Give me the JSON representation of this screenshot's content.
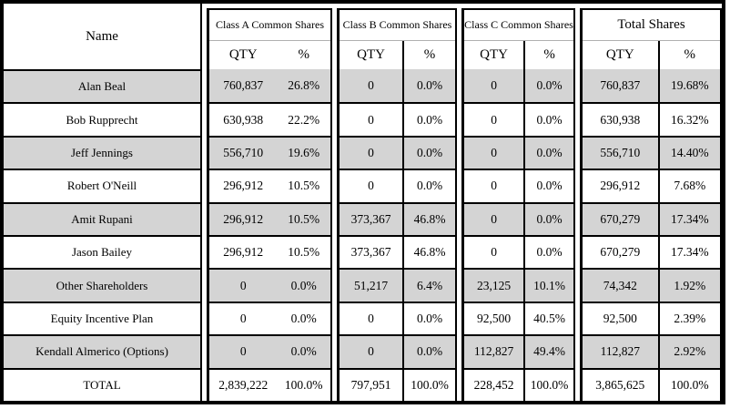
{
  "table": {
    "name_header": "Name",
    "groups": [
      {
        "id": "a",
        "title": "Class A Common Shares",
        "qty_label": "QTY",
        "pct_label": "%"
      },
      {
        "id": "b",
        "title": "Class B Common Shares",
        "qty_label": "QTY",
        "pct_label": "%"
      },
      {
        "id": "c",
        "title": "Class C Common Shares",
        "qty_label": "QTY",
        "pct_label": "%"
      },
      {
        "id": "total",
        "title": "Total Shares",
        "qty_label": "QTY",
        "pct_label": "%"
      }
    ],
    "rows": [
      {
        "name": "Alan Beal",
        "a_qty": "760,837",
        "a_pct": "26.8%",
        "b_qty": "0",
        "b_pct": "0.0%",
        "c_qty": "0",
        "c_pct": "0.0%",
        "t_qty": "760,837",
        "t_pct": "19.68%"
      },
      {
        "name": "Bob Rupprecht",
        "a_qty": "630,938",
        "a_pct": "22.2%",
        "b_qty": "0",
        "b_pct": "0.0%",
        "c_qty": "0",
        "c_pct": "0.0%",
        "t_qty": "630,938",
        "t_pct": "16.32%"
      },
      {
        "name": "Jeff Jennings",
        "a_qty": "556,710",
        "a_pct": "19.6%",
        "b_qty": "0",
        "b_pct": "0.0%",
        "c_qty": "0",
        "c_pct": "0.0%",
        "t_qty": "556,710",
        "t_pct": "14.40%"
      },
      {
        "name": "Robert O'Neill",
        "a_qty": "296,912",
        "a_pct": "10.5%",
        "b_qty": "0",
        "b_pct": "0.0%",
        "c_qty": "0",
        "c_pct": "0.0%",
        "t_qty": "296,912",
        "t_pct": "7.68%"
      },
      {
        "name": "Amit Rupani",
        "a_qty": "296,912",
        "a_pct": "10.5%",
        "b_qty": "373,367",
        "b_pct": "46.8%",
        "c_qty": "0",
        "c_pct": "0.0%",
        "t_qty": "670,279",
        "t_pct": "17.34%"
      },
      {
        "name": "Jason Bailey",
        "a_qty": "296,912",
        "a_pct": "10.5%",
        "b_qty": "373,367",
        "b_pct": "46.8%",
        "c_qty": "0",
        "c_pct": "0.0%",
        "t_qty": "670,279",
        "t_pct": "17.34%"
      },
      {
        "name": "Other Shareholders",
        "a_qty": "0",
        "a_pct": "0.0%",
        "b_qty": "51,217",
        "b_pct": "6.4%",
        "c_qty": "23,125",
        "c_pct": "10.1%",
        "t_qty": "74,342",
        "t_pct": "1.92%"
      },
      {
        "name": "Equity Incentive Plan",
        "a_qty": "0",
        "a_pct": "0.0%",
        "b_qty": "0",
        "b_pct": "0.0%",
        "c_qty": "92,500",
        "c_pct": "40.5%",
        "t_qty": "92,500",
        "t_pct": "2.39%"
      },
      {
        "name": "Kendall Almerico (Options)",
        "a_qty": "0",
        "a_pct": "0.0%",
        "b_qty": "0",
        "b_pct": "0.0%",
        "c_qty": "112,827",
        "c_pct": "49.4%",
        "t_qty": "112,827",
        "t_pct": "2.92%"
      },
      {
        "name": "TOTAL",
        "a_qty": "2,839,222",
        "a_pct": "100.0%",
        "b_qty": "797,951",
        "b_pct": "100.0%",
        "c_qty": "228,452",
        "c_pct": "100.0%",
        "t_qty": "3,865,625",
        "t_pct": "100.0%"
      }
    ],
    "colors": {
      "shaded_row": "#d4d4d4",
      "border": "#000000",
      "title_underline": "#b0b0b0"
    }
  }
}
